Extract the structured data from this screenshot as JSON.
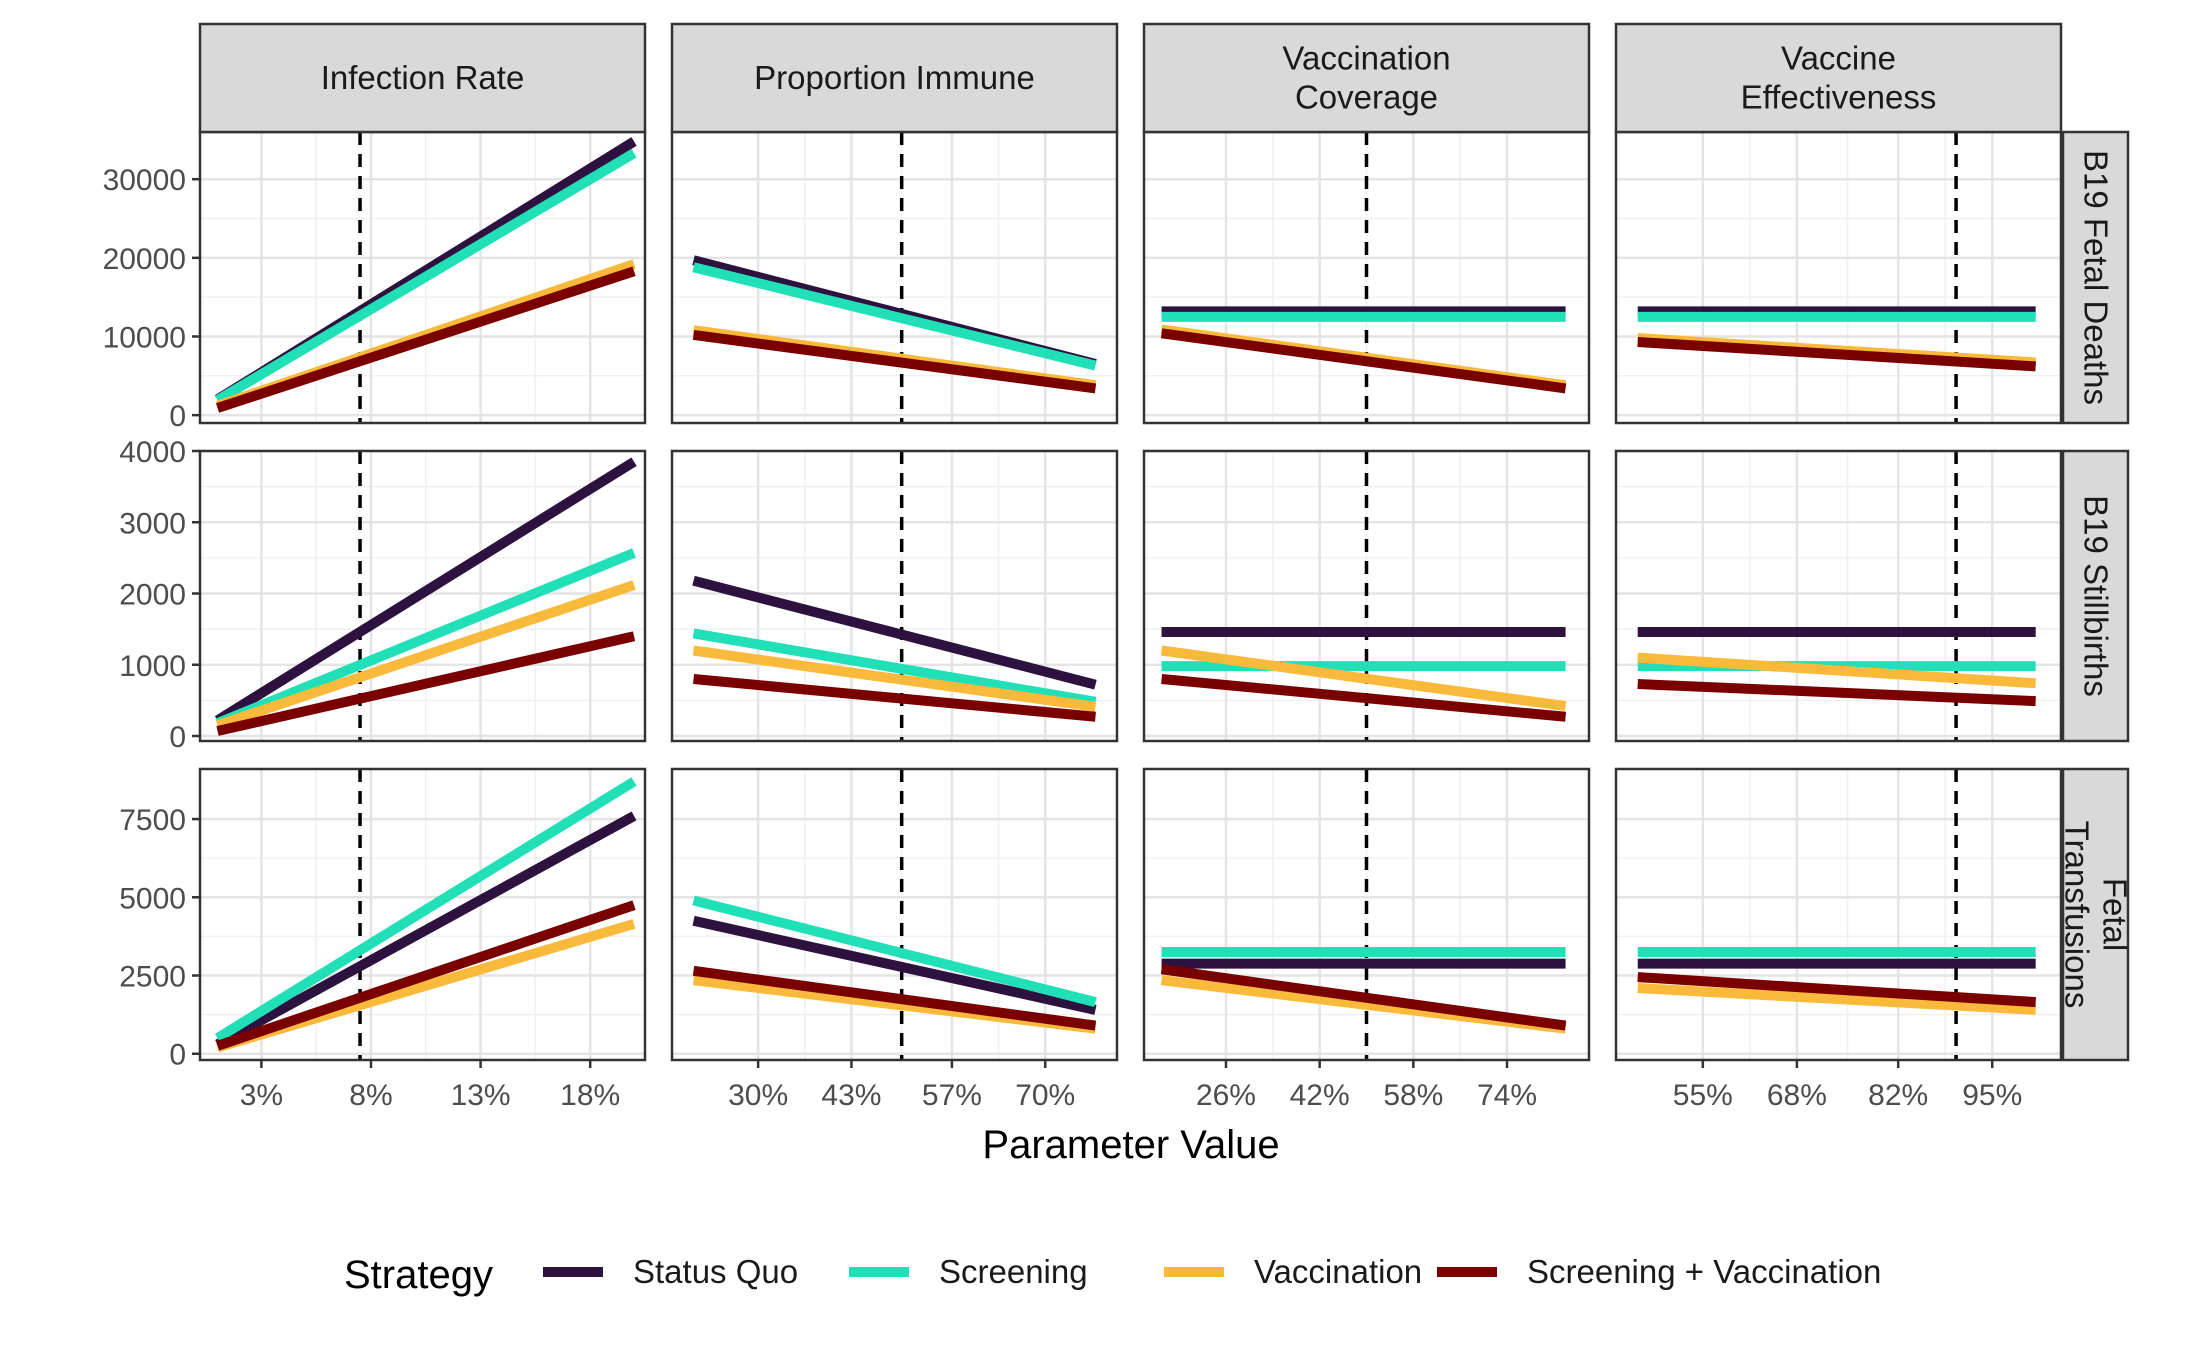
{
  "chart_data": {
    "type": "line",
    "xlabel": "Parameter Value",
    "ylabel": "",
    "grid": true,
    "legend": {
      "title": "Strategy",
      "position": "bottom"
    },
    "series_names": [
      "Status Quo",
      "Screening",
      "Vaccination",
      "Screening + Vaccination"
    ],
    "colors": {
      "Status Quo": "#2d1240",
      "Screening": "#21e0b8",
      "Vaccination": "#f9b93b",
      "Screening + Vaccination": "#7a0000"
    },
    "columns": [
      {
        "label": "Infection Rate",
        "xlim": [
          0.2,
          20.5
        ],
        "x_ticks": [
          3,
          8,
          13,
          18
        ],
        "x_tick_labels": [
          "3%",
          "8%",
          "13%",
          "18%"
        ],
        "reference_x": 7.5,
        "x_range": [
          1,
          20
        ]
      },
      {
        "label": "Proportion Immune",
        "xlim": [
          18,
          80
        ],
        "x_ticks": [
          30,
          43,
          57,
          70
        ],
        "x_tick_labels": [
          "30%",
          "43%",
          "57%",
          "70%"
        ],
        "reference_x": 50,
        "x_range": [
          21,
          77
        ]
      },
      {
        "label": "Vaccination\nCoverage",
        "xlim": [
          12,
          88
        ],
        "x_ticks": [
          26,
          42,
          58,
          74
        ],
        "x_tick_labels": [
          "26%",
          "42%",
          "58%",
          "74%"
        ],
        "reference_x": 50,
        "x_range": [
          15,
          84
        ]
      },
      {
        "label": "Vaccine\nEffectiveness",
        "xlim": [
          43,
          104.5
        ],
        "x_ticks": [
          55,
          68,
          82,
          95
        ],
        "x_tick_labels": [
          "55%",
          "68%",
          "82%",
          "95%"
        ],
        "reference_x": 90,
        "x_range": [
          46,
          101
        ]
      }
    ],
    "rows": [
      {
        "label": "B19 Fetal Deaths",
        "ylim": [
          -1000,
          36000
        ],
        "y_ticks": [
          0,
          10000,
          20000,
          30000
        ],
        "y_tick_labels": [
          "0",
          "10000",
          "20000",
          "30000"
        ],
        "panels": [
          {
            "Status Quo": [
              2000,
              34800
            ],
            "Screening": [
              1900,
              33300
            ],
            "Vaccination": [
              1200,
              19200
            ],
            "Screening + Vaccination": [
              900,
              18300
            ]
          },
          {
            "Status Quo": [
              19700,
              6500
            ],
            "Screening": [
              18800,
              6300
            ],
            "Vaccination": [
              10800,
              3800
            ],
            "Screening + Vaccination": [
              10200,
              3400
            ]
          },
          {
            "Status Quo": [
              13200,
              13200
            ],
            "Screening": [
              12500,
              12500
            ],
            "Vaccination": [
              10900,
              3800
            ],
            "Screening + Vaccination": [
              10400,
              3400
            ]
          },
          {
            "Status Quo": [
              13200,
              13200
            ],
            "Screening": [
              12500,
              12500
            ],
            "Vaccination": [
              9800,
              6700
            ],
            "Screening + Vaccination": [
              9300,
              6200
            ]
          }
        ]
      },
      {
        "label": "B19 Stillbirths",
        "ylim": [
          -70,
          4000
        ],
        "y_ticks": [
          0,
          1000,
          2000,
          3000,
          4000
        ],
        "y_tick_labels": [
          "0",
          "1000",
          "2000",
          "3000",
          "4000"
        ],
        "panels": [
          {
            "Status Quo": [
              220,
              3850
            ],
            "Screening": [
              180,
              2570
            ],
            "Vaccination": [
              150,
              2120
            ],
            "Screening + Vaccination": [
              70,
              1400
            ]
          },
          {
            "Status Quo": [
              2180,
              720
            ],
            "Screening": [
              1440,
              480
            ],
            "Vaccination": [
              1200,
              410
            ],
            "Screening + Vaccination": [
              800,
              270
            ]
          },
          {
            "Status Quo": [
              1460,
              1460
            ],
            "Screening": [
              980,
              980
            ],
            "Vaccination": [
              1200,
              420
            ],
            "Screening + Vaccination": [
              800,
              270
            ]
          },
          {
            "Status Quo": [
              1460,
              1460
            ],
            "Screening": [
              980,
              980
            ],
            "Vaccination": [
              1100,
              740
            ],
            "Screening + Vaccination": [
              730,
              490
            ]
          }
        ]
      },
      {
        "label": "Fetal\nTransfusions",
        "ylim": [
          -200,
          9100
        ],
        "y_ticks": [
          0,
          2500,
          5000,
          7500
        ],
        "y_tick_labels": [
          "0",
          "2500",
          "5000",
          "7500"
        ],
        "panels": [
          {
            "Status Quo": [
              300,
              7600
            ],
            "Screening": [
              500,
              8700
            ],
            "Vaccination": [
              200,
              4150
            ],
            "Screening + Vaccination": [
              250,
              4750
            ]
          },
          {
            "Status Quo": [
              4250,
              1400
            ],
            "Screening": [
              4900,
              1650
            ],
            "Vaccination": [
              2350,
              800
            ],
            "Screening + Vaccination": [
              2650,
              900
            ]
          },
          {
            "Status Quo": [
              2880,
              2880
            ],
            "Screening": [
              3250,
              3250
            ],
            "Vaccination": [
              2350,
              800
            ],
            "Screening + Vaccination": [
              2700,
              900
            ]
          },
          {
            "Status Quo": [
              2880,
              2880
            ],
            "Screening": [
              3250,
              3250
            ],
            "Vaccination": [
              2100,
              1400
            ],
            "Screening + Vaccination": [
              2450,
              1650
            ]
          }
        ]
      }
    ]
  }
}
